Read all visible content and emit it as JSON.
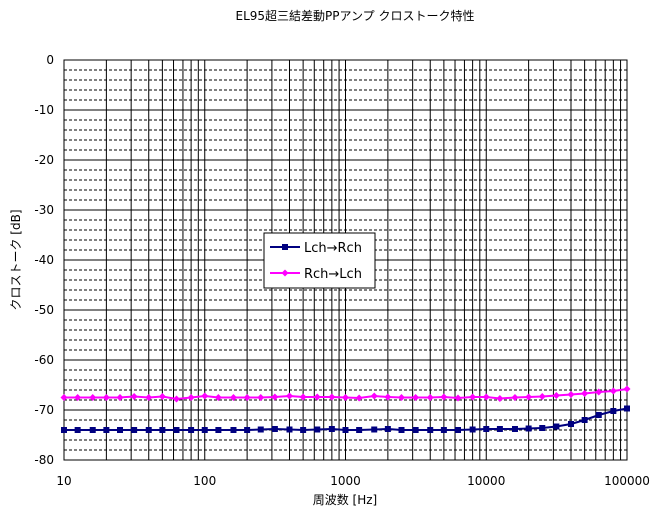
{
  "chart_data": {
    "type": "line",
    "title": "EL95超三結差動PPアンプ クロストーク特性",
    "xlabel": "周波数 [Hz]",
    "ylabel": "クロストーク [dB]",
    "xscale": "log",
    "xlim": [
      10,
      100000
    ],
    "ylim": [
      -80,
      0
    ],
    "x_tick_labels": [
      "10",
      "100",
      "1000",
      "10000",
      "100000"
    ],
    "y_tick_labels": [
      "0",
      "-10",
      "-20",
      "-30",
      "-40",
      "-50",
      "-60",
      "-70",
      "-80"
    ],
    "grid": true,
    "legend_position": "center-left",
    "series": [
      {
        "name": "Lch→Rch",
        "color": "#000080",
        "marker": "square",
        "x": [
          10,
          12.5,
          16,
          20,
          25,
          31.5,
          40,
          50,
          63,
          80,
          100,
          125,
          160,
          200,
          250,
          315,
          400,
          500,
          630,
          800,
          1000,
          1250,
          1600,
          2000,
          2500,
          3150,
          4000,
          5000,
          6300,
          8000,
          10000,
          12500,
          16000,
          20000,
          25000,
          31500,
          40000,
          50000,
          63000,
          80000,
          100000
        ],
        "values": [
          -74,
          -74,
          -74,
          -74,
          -74,
          -74,
          -74,
          -74,
          -74,
          -74,
          -74,
          -74,
          -74,
          -74,
          -73.9,
          -73.8,
          -73.9,
          -74,
          -73.9,
          -73.8,
          -74,
          -74,
          -73.9,
          -73.8,
          -74,
          -74,
          -74,
          -74,
          -74,
          -73.9,
          -73.8,
          -73.8,
          -73.8,
          -73.7,
          -73.6,
          -73.3,
          -72.8,
          -72,
          -71,
          -70.2,
          -69.7
        ]
      },
      {
        "name": "Rch→Lch",
        "color": "#ff00ff",
        "marker": "diamond",
        "x": [
          10,
          12.5,
          16,
          20,
          25,
          31.5,
          40,
          50,
          63,
          80,
          100,
          125,
          160,
          200,
          250,
          315,
          400,
          500,
          630,
          800,
          1000,
          1250,
          1600,
          2000,
          2500,
          3150,
          4000,
          5000,
          6300,
          8000,
          10000,
          12500,
          16000,
          20000,
          25000,
          31500,
          40000,
          50000,
          63000,
          80000,
          100000
        ],
        "values": [
          -67.5,
          -67.5,
          -67.5,
          -67.5,
          -67.5,
          -67.3,
          -67.5,
          -67.3,
          -67.8,
          -67.5,
          -67.2,
          -67.5,
          -67.5,
          -67.5,
          -67.5,
          -67.4,
          -67.2,
          -67.4,
          -67.4,
          -67.4,
          -67.5,
          -67.6,
          -67.2,
          -67.4,
          -67.5,
          -67.5,
          -67.5,
          -67.4,
          -67.6,
          -67.4,
          -67.4,
          -67.7,
          -67.5,
          -67.4,
          -67.3,
          -67.1,
          -66.9,
          -66.7,
          -66.4,
          -66.2,
          -65.8
        ]
      }
    ]
  }
}
